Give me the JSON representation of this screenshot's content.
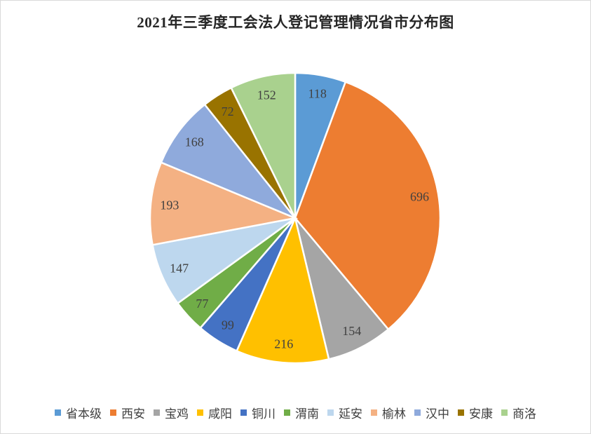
{
  "chart_data": {
    "type": "pie",
    "title": "2021年三季度工会法人登记管理情况省市分布图",
    "categories": [
      "省本级",
      "西安",
      "宝鸡",
      "咸阳",
      "铜川",
      "渭南",
      "延安",
      "榆林",
      "汉中",
      "安康",
      "商洛"
    ],
    "values": [
      118,
      696,
      154,
      216,
      99,
      77,
      147,
      193,
      168,
      72,
      152
    ],
    "colors": [
      "#5b9bd5",
      "#ed7d31",
      "#a5a5a5",
      "#ffc000",
      "#4472c4",
      "#70ad47",
      "#bdd7ee",
      "#f4b183",
      "#8faadc",
      "#997300",
      "#a9d18e"
    ],
    "legend_position": "bottom",
    "start_direction": "12 o'clock, clockwise"
  }
}
